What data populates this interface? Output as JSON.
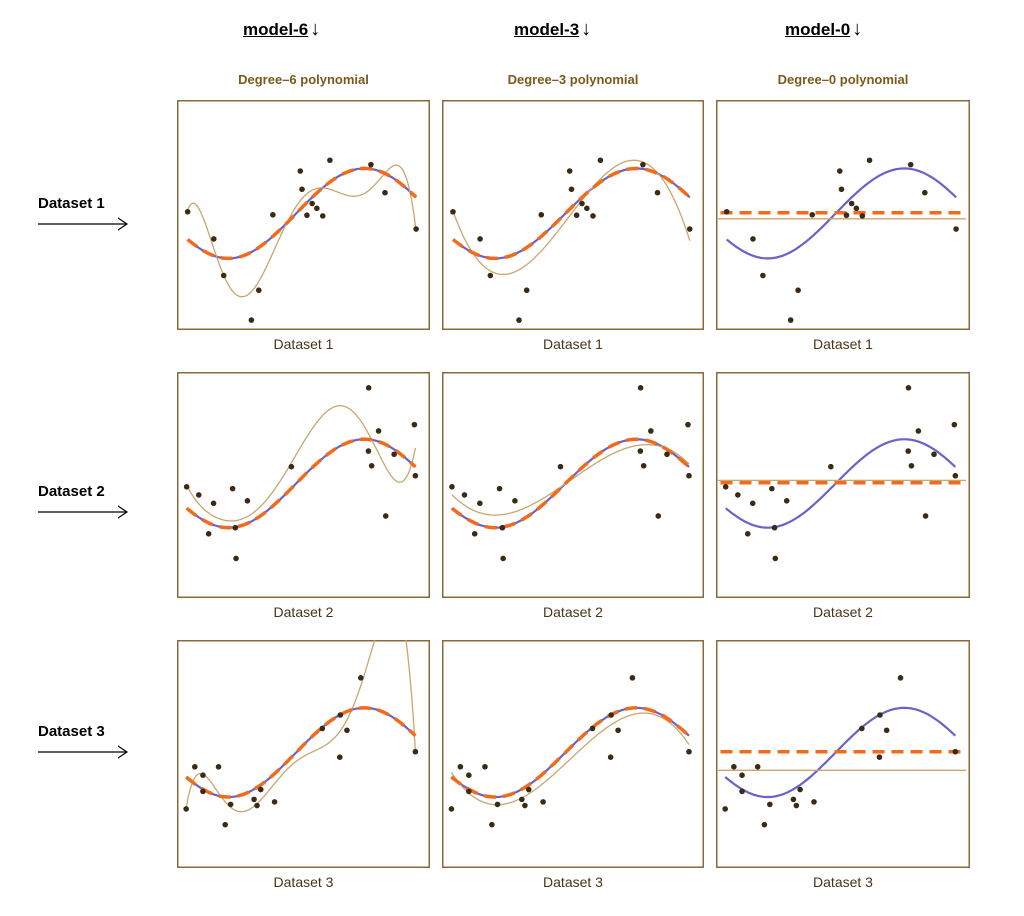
{
  "columns": [
    {
      "header": "model-6",
      "subtitle": "Degree–6 polynomial",
      "degree": 6
    },
    {
      "header": "model-3",
      "subtitle": "Degree–3 polynomial",
      "degree": 3
    },
    {
      "header": "model-0",
      "subtitle": "Degree–0 polynomial",
      "degree": 0
    }
  ],
  "arrow_glyph": "↓",
  "rows": [
    {
      "label": "Dataset 1",
      "caption": "Dataset 1"
    },
    {
      "label": "Dataset 2",
      "caption": "Dataset 2"
    },
    {
      "label": "Dataset 3",
      "caption": "Dataset 3"
    }
  ],
  "colors": {
    "true_curve": "#6a62c8",
    "expected_fit": "#f26a1b",
    "fitted_curve": "#c9a66e",
    "points": "#3a2a16",
    "frame": "#8a6a3a"
  },
  "chart_data": {
    "type": "scatter",
    "grid": false,
    "axes_shown": false,
    "xlim": [
      0,
      10
    ],
    "ylim": [
      0,
      10
    ],
    "true_curve": {
      "x": [
        0,
        1,
        2,
        3,
        4,
        5,
        6,
        7,
        8,
        9,
        10
      ],
      "y": [
        4.26,
        3.43,
        3.12,
        3.43,
        4.26,
        5.35,
        6.35,
        6.94,
        6.94,
        6.35,
        5.35
      ]
    },
    "expected_fit_degree0": 5.1,
    "datasets": [
      {
        "name": "Dataset 1",
        "x": [
          0.35,
          1.41,
          1.81,
          2.93,
          3.23,
          3.8,
          4.91,
          4.98,
          5.18,
          5.39,
          5.58,
          5.82,
          6.11,
          7.77,
          8.34,
          9.6
        ],
        "y": [
          5.14,
          3.96,
          2.37,
          0.43,
          1.73,
          5.01,
          6.91,
          6.12,
          4.99,
          5.5,
          5.29,
          4.96,
          7.38,
          7.19,
          5.97,
          4.39
        ]
      },
      {
        "name": "Dataset 2",
        "x": [
          0.31,
          0.8,
          1.2,
          1.4,
          2.17,
          2.28,
          2.31,
          2.77,
          4.55,
          7.68,
          7.67,
          7.8,
          8.08,
          8.37,
          8.71,
          9.53,
          9.57
        ],
        "y": [
          4.92,
          4.56,
          2.84,
          4.19,
          4.84,
          3.11,
          1.75,
          4.3,
          5.81,
          9.3,
          6.5,
          5.85,
          7.39,
          3.63,
          6.36,
          7.67,
          5.41
        ]
      },
      {
        "name": "Dataset 3",
        "x": [
          0.29,
          0.64,
          0.97,
          0.97,
          1.6,
          1.87,
          2.09,
          3.04,
          3.16,
          3.31,
          3.87,
          5.8,
          6.51,
          6.53,
          6.8,
          7.36,
          9.57
        ],
        "y": [
          2.59,
          4.44,
          4.07,
          3.36,
          4.44,
          1.9,
          2.79,
          3.01,
          2.74,
          3.44,
          2.9,
          6.12,
          4.86,
          6.71,
          6.04,
          8.34,
          5.1
        ]
      }
    ]
  }
}
